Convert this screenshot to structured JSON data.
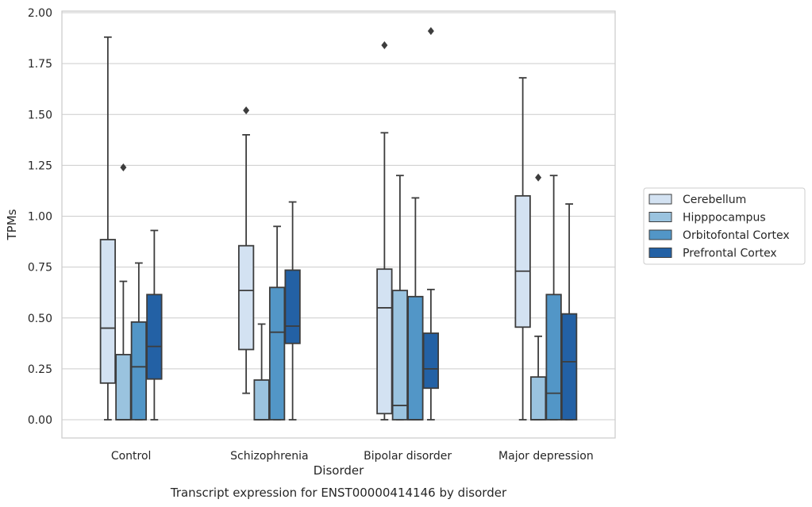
{
  "chart_data": {
    "type": "box",
    "title": "",
    "caption": "Transcript expression for ENST00000414146 by disorder",
    "xlabel": "Disorder",
    "ylabel": "TPMs",
    "categories": [
      "Control",
      "Schizophrenia",
      "Bipolar disorder",
      "Major depression"
    ],
    "ylim": [
      -0.09,
      2.01
    ],
    "yticks": [
      "0.00",
      "0.25",
      "0.50",
      "0.75",
      "1.00",
      "1.25",
      "1.50",
      "1.75",
      "2.00"
    ],
    "grid": "horizontal",
    "legend_position": "right",
    "series": [
      {
        "name": "Cerebellum",
        "color": "#d3e2f2",
        "boxes": [
          {
            "whislo": 0.0,
            "q1": 0.18,
            "median": 0.45,
            "q3": 0.885,
            "whishi": 1.88,
            "fliers": []
          },
          {
            "whislo": 0.13,
            "q1": 0.345,
            "median": 0.635,
            "q3": 0.855,
            "whishi": 1.4,
            "fliers": [
              1.52
            ]
          },
          {
            "whislo": 0.0,
            "q1": 0.03,
            "median": 0.55,
            "q3": 0.74,
            "whishi": 1.41,
            "fliers": [
              1.84
            ]
          },
          {
            "whislo": 0.0,
            "q1": 0.455,
            "median": 0.73,
            "q3": 1.1,
            "whishi": 1.68,
            "fliers": []
          }
        ]
      },
      {
        "name": "Hipppocampus",
        "color": "#9ac3df",
        "boxes": [
          {
            "whislo": 0.0,
            "q1": 0.0,
            "median": 0.0,
            "q3": 0.32,
            "whishi": 0.68,
            "fliers": [
              1.24
            ]
          },
          {
            "whislo": 0.0,
            "q1": 0.0,
            "median": 0.0,
            "q3": 0.195,
            "whishi": 0.47,
            "fliers": []
          },
          {
            "whislo": 0.0,
            "q1": 0.0,
            "median": 0.07,
            "q3": 0.635,
            "whishi": 1.2,
            "fliers": []
          },
          {
            "whislo": 0.0,
            "q1": 0.0,
            "median": 0.0,
            "q3": 0.21,
            "whishi": 0.41,
            "fliers": [
              1.19
            ]
          }
        ]
      },
      {
        "name": "Orbitofontal Cortex",
        "color": "#5296c7",
        "boxes": [
          {
            "whislo": 0.0,
            "q1": 0.0,
            "median": 0.26,
            "q3": 0.48,
            "whishi": 0.77,
            "fliers": []
          },
          {
            "whislo": 0.0,
            "q1": 0.0,
            "median": 0.43,
            "q3": 0.65,
            "whishi": 0.95,
            "fliers": []
          },
          {
            "whislo": 0.0,
            "q1": 0.0,
            "median": 0.0,
            "q3": 0.605,
            "whishi": 1.09,
            "fliers": []
          },
          {
            "whislo": 0.0,
            "q1": 0.0,
            "median": 0.13,
            "q3": 0.615,
            "whishi": 1.2,
            "fliers": []
          }
        ]
      },
      {
        "name": "Prefrontal Cortex",
        "color": "#2361a5",
        "boxes": [
          {
            "whislo": 0.0,
            "q1": 0.2,
            "median": 0.36,
            "q3": 0.615,
            "whishi": 0.93,
            "fliers": []
          },
          {
            "whislo": 0.0,
            "q1": 0.375,
            "median": 0.46,
            "q3": 0.735,
            "whishi": 1.07,
            "fliers": []
          },
          {
            "whislo": 0.0,
            "q1": 0.155,
            "median": 0.25,
            "q3": 0.425,
            "whishi": 0.64,
            "fliers": [
              1.91
            ]
          },
          {
            "whislo": 0.0,
            "q1": 0.0,
            "median": 0.285,
            "q3": 0.52,
            "whishi": 1.06,
            "fliers": []
          }
        ]
      }
    ]
  }
}
